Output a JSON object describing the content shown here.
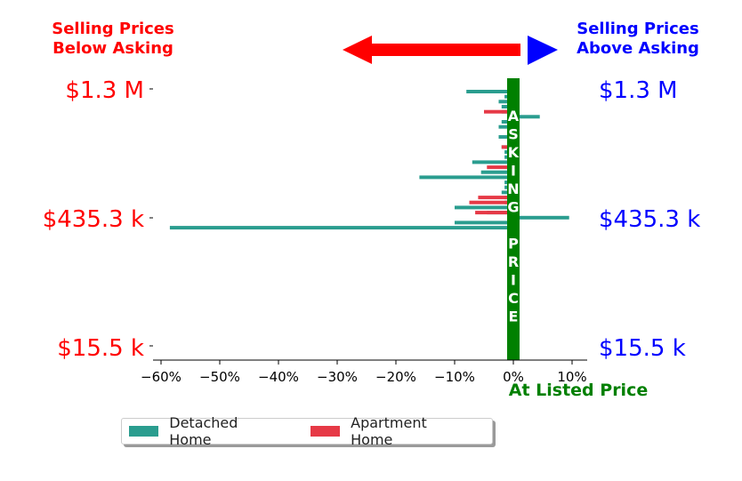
{
  "header": {
    "below_line1": "Selling Prices",
    "below_line2": "Below Asking",
    "above_line1": "Selling Prices",
    "above_line2": "Above Asking",
    "below_color": "#ff0000",
    "above_color": "#0000ff"
  },
  "price_labels": [
    "$1.3 M",
    "$435.3 k",
    "$15.5 k"
  ],
  "asking_letters": [
    "A",
    "S",
    "K",
    "I",
    "N",
    "G",
    "",
    "P",
    "R",
    "I",
    "C",
    "E"
  ],
  "listed_label": "At Listed Price",
  "colors": {
    "detached": "#2a9d8f",
    "apartment": "#e63946",
    "asking_band": "#008000"
  },
  "chart_data": {
    "type": "bar",
    "orientation": "horizontal",
    "xlabel": "",
    "ylabel": "",
    "xlim": [
      -0.62,
      0.14
    ],
    "x_ticks": [
      -0.6,
      -0.5,
      -0.4,
      -0.3,
      -0.2,
      -0.1,
      0.0,
      0.1
    ],
    "x_tick_labels": [
      "−60%",
      "−50%",
      "−40%",
      "−30%",
      "−20%",
      "−10%",
      "0%",
      "10%"
    ],
    "legend_position": "bottom",
    "series": [
      {
        "name": "Detached Home",
        "values": [
          -0.08,
          -0.015,
          -0.025,
          -0.02,
          -0.02,
          0.045,
          -0.02,
          -0.025,
          0.01,
          -0.025,
          0.005,
          -0.02,
          -0.015,
          -0.015,
          -0.07,
          0.01,
          -0.055,
          -0.16,
          -0.015,
          -0.015,
          -0.02,
          -0.015,
          -0.015,
          -0.1,
          -0.045,
          0.095,
          -0.1,
          -0.585
        ]
      },
      {
        "name": "Apartment Home",
        "values": [
          0,
          0,
          0,
          0,
          -0.05,
          0,
          0,
          0,
          0,
          0,
          0,
          -0.02,
          0,
          0,
          0,
          -0.045,
          0,
          0,
          0,
          0,
          0,
          -0.06,
          -0.075,
          0,
          -0.065,
          0,
          0,
          0
        ]
      }
    ]
  }
}
